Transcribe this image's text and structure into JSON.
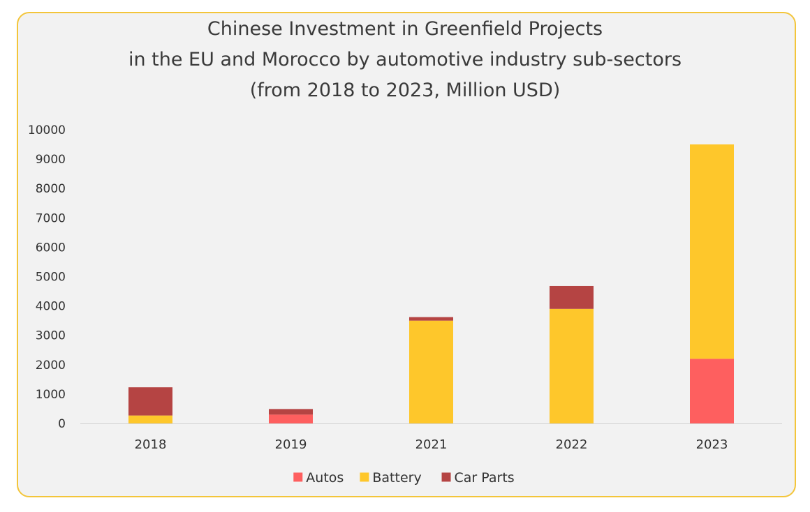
{
  "chart_data": {
    "type": "bar",
    "stacked": true,
    "title_lines": [
      "Chinese Investment in Greenfield Projects",
      "in the EU and Morocco by automotive industry sub-sectors",
      "(from 2018 to 2023, Million USD)"
    ],
    "categories": [
      "2018",
      "2019",
      "2021",
      "2022",
      "2023"
    ],
    "series": [
      {
        "name": "Autos",
        "color": "#fe5f5f",
        "values": [
          0,
          300,
          0,
          0,
          2200
        ]
      },
      {
        "name": "Battery",
        "color": "#fec72b",
        "values": [
          270,
          0,
          3500,
          3900,
          7300
        ]
      },
      {
        "name": "Car Parts",
        "color": "#b54443",
        "values": [
          960,
          190,
          120,
          780,
          0
        ]
      }
    ],
    "ylim": [
      0,
      10000
    ],
    "yticks": [
      0,
      1000,
      2000,
      3000,
      4000,
      5000,
      6000,
      7000,
      8000,
      9000,
      10000
    ],
    "grid": false,
    "legend_position": "bottom",
    "border_color": "#f3c53a",
    "background_color": "#f2f2f2"
  }
}
